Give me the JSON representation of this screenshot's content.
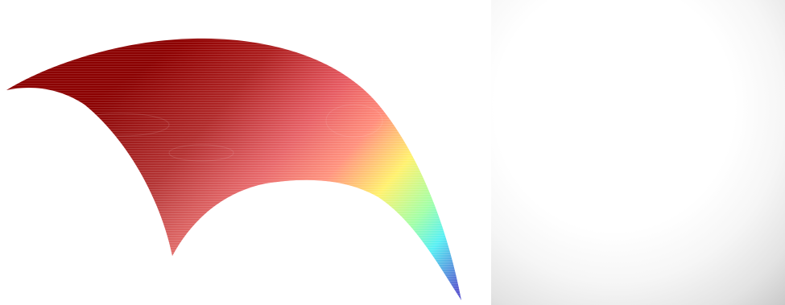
{
  "scene": {
    "left_view": {
      "content": "surface-mesh",
      "colormap": [
        "#00008b",
        "#0000ff",
        "#00ffff",
        "#ffff00",
        "#ff0000",
        "#8b0000"
      ]
    },
    "right_view": {
      "content": "radial-shading",
      "colors": [
        "#ffffff",
        "#5f5f5f"
      ]
    }
  }
}
